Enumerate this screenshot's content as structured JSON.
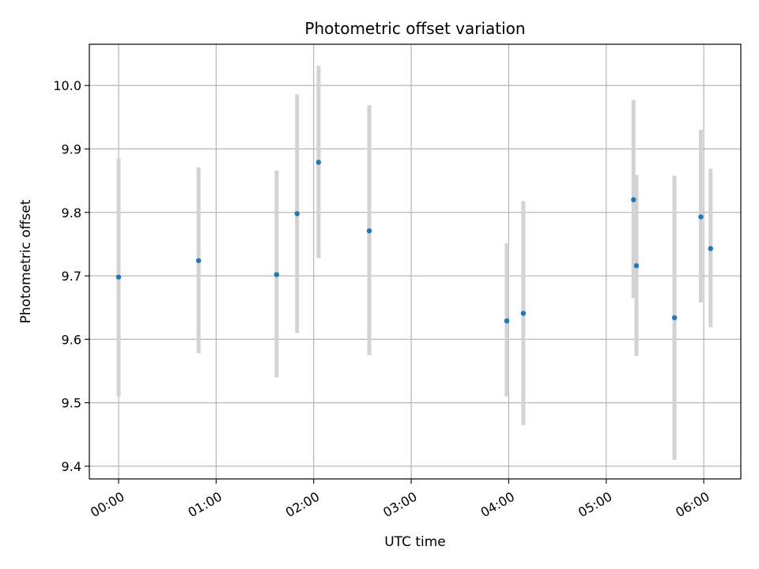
{
  "chart_data": {
    "type": "scatter",
    "title": "Photometric offset variation",
    "xlabel": "UTC time",
    "ylabel": "Photometric offset",
    "x_unit": "hours",
    "xlim": [
      -0.3,
      6.38
    ],
    "ylim": [
      9.38,
      10.065
    ],
    "x_ticks": [
      {
        "value": 0,
        "label": "00:00"
      },
      {
        "value": 1,
        "label": "01:00"
      },
      {
        "value": 2,
        "label": "02:00"
      },
      {
        "value": 3,
        "label": "03:00"
      },
      {
        "value": 4,
        "label": "04:00"
      },
      {
        "value": 5,
        "label": "05:00"
      },
      {
        "value": 6,
        "label": "06:00"
      }
    ],
    "y_ticks": [
      {
        "value": 9.4,
        "label": "9.4"
      },
      {
        "value": 9.5,
        "label": "9.5"
      },
      {
        "value": 9.6,
        "label": "9.6"
      },
      {
        "value": 9.7,
        "label": "9.7"
      },
      {
        "value": 9.8,
        "label": "9.8"
      },
      {
        "value": 9.9,
        "label": "9.9"
      },
      {
        "value": 10.0,
        "label": "10.0"
      }
    ],
    "grid": true,
    "colors": {
      "point": "#1f77b4",
      "errorbar": "#d3d3d3",
      "grid": "#b0b0b0"
    },
    "series": [
      {
        "points": [
          {
            "x": 0.0,
            "y": 9.698,
            "ylow": 9.51,
            "yhigh": 9.885
          },
          {
            "x": 0.82,
            "y": 9.724,
            "ylow": 9.578,
            "yhigh": 9.871
          },
          {
            "x": 1.62,
            "y": 9.702,
            "ylow": 9.54,
            "yhigh": 9.866
          },
          {
            "x": 1.83,
            "y": 9.798,
            "ylow": 9.61,
            "yhigh": 9.986
          },
          {
            "x": 2.05,
            "y": 9.879,
            "ylow": 9.728,
            "yhigh": 10.031
          },
          {
            "x": 2.57,
            "y": 9.771,
            "ylow": 9.575,
            "yhigh": 9.969
          },
          {
            "x": 3.98,
            "y": 9.629,
            "ylow": 9.51,
            "yhigh": 9.751
          },
          {
            "x": 4.15,
            "y": 9.641,
            "ylow": 9.465,
            "yhigh": 9.818
          },
          {
            "x": 5.28,
            "y": 9.82,
            "ylow": 9.665,
            "yhigh": 9.977
          },
          {
            "x": 5.31,
            "y": 9.716,
            "ylow": 9.574,
            "yhigh": 9.859
          },
          {
            "x": 5.7,
            "y": 9.634,
            "ylow": 9.41,
            "yhigh": 9.858
          },
          {
            "x": 5.97,
            "y": 9.793,
            "ylow": 9.658,
            "yhigh": 9.93
          },
          {
            "x": 6.07,
            "y": 9.743,
            "ylow": 9.619,
            "yhigh": 9.869
          }
        ]
      }
    ]
  }
}
